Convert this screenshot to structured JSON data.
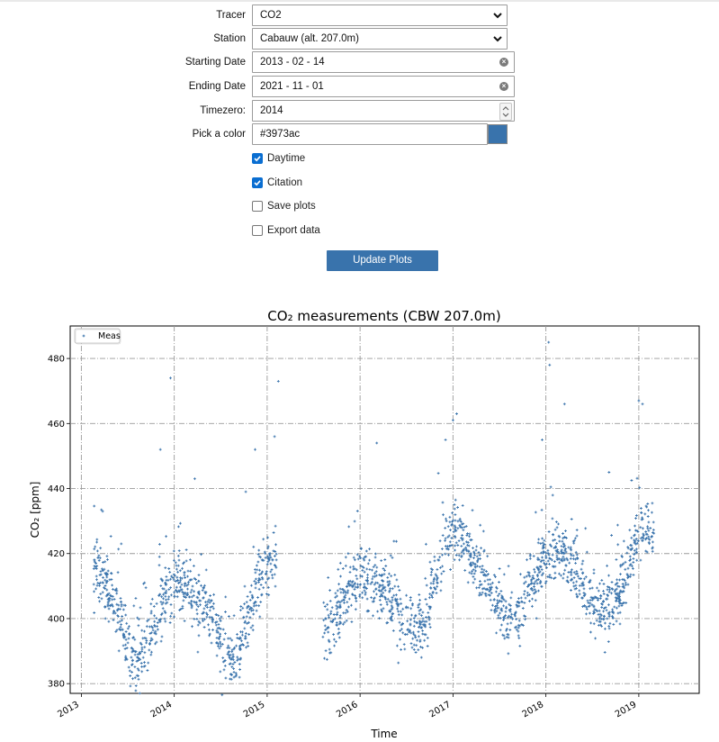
{
  "form": {
    "tracer": {
      "label": "Tracer",
      "value": "CO2"
    },
    "station": {
      "label": "Station",
      "value": "Cabauw (alt. 207.0m)"
    },
    "start_date": {
      "label": "Starting Date",
      "value": "2013 - 02 - 14"
    },
    "end_date": {
      "label": "Ending Date",
      "value": "2021 - 11 - 01"
    },
    "timezero": {
      "label": "Timezero:",
      "value": "2014"
    },
    "color": {
      "label": "Pick a color",
      "value": "#3973ac"
    },
    "checkboxes": [
      {
        "label": "Daytime",
        "checked": true
      },
      {
        "label": "Citation",
        "checked": true
      },
      {
        "label": "Save plots",
        "checked": false
      },
      {
        "label": "Export data",
        "checked": false
      }
    ],
    "update_button": "Update Plots"
  },
  "chart_data": {
    "type": "scatter",
    "title": "CO₂ measurements (CBW 207.0m)",
    "xlabel": "Time",
    "ylabel": "CO₂ [ppm]",
    "xlim": [
      2012.88,
      2019.65
    ],
    "ylim": [
      377,
      490
    ],
    "x_ticks": [
      "2013",
      "2014",
      "2015",
      "2016",
      "2017",
      "2018",
      "2019"
    ],
    "y_ticks": [
      380,
      400,
      420,
      440,
      460,
      480
    ],
    "grid": true,
    "grid_style": "dash-dot",
    "legend": {
      "entries": [
        "Meas"
      ],
      "placement": "top-left"
    },
    "marker": "+",
    "series_color": "#3973ac",
    "series": [
      {
        "name": "Meas",
        "note_segments_approx": [
          {
            "from": "2013-02-14",
            "to": "2015-03-10",
            "pattern": "seasonal cycle, winter ~405-410, summer ~390"
          },
          {
            "from": "2015-07-01",
            "to": "2019-03-01",
            "pattern": "seasonal cycle, winter ~415-425, summer ~395-400"
          }
        ],
        "points": [
          {
            "x": 2013.13,
            "y": 420
          },
          {
            "x": 2013.2,
            "y": 415
          },
          {
            "x": 2013.3,
            "y": 407
          },
          {
            "x": 2013.4,
            "y": 401
          },
          {
            "x": 2013.5,
            "y": 393
          },
          {
            "x": 2013.55,
            "y": 387
          },
          {
            "x": 2013.65,
            "y": 390
          },
          {
            "x": 2013.75,
            "y": 395
          },
          {
            "x": 2013.85,
            "y": 402
          },
          {
            "x": 2013.92,
            "y": 408
          },
          {
            "x": 2014.0,
            "y": 410
          },
          {
            "x": 2014.1,
            "y": 409
          },
          {
            "x": 2014.2,
            "y": 407
          },
          {
            "x": 2014.3,
            "y": 405
          },
          {
            "x": 2014.4,
            "y": 400
          },
          {
            "x": 2014.5,
            "y": 392
          },
          {
            "x": 2014.6,
            "y": 387
          },
          {
            "x": 2014.7,
            "y": 392
          },
          {
            "x": 2014.8,
            "y": 400
          },
          {
            "x": 2014.9,
            "y": 410
          },
          {
            "x": 2015.0,
            "y": 415
          },
          {
            "x": 2015.1,
            "y": 418
          },
          {
            "x": 2015.6,
            "y": 397
          },
          {
            "x": 2015.7,
            "y": 396
          },
          {
            "x": 2015.8,
            "y": 405
          },
          {
            "x": 2015.9,
            "y": 410
          },
          {
            "x": 2016.0,
            "y": 412
          },
          {
            "x": 2016.1,
            "y": 411
          },
          {
            "x": 2016.2,
            "y": 410
          },
          {
            "x": 2016.3,
            "y": 408
          },
          {
            "x": 2016.4,
            "y": 404
          },
          {
            "x": 2016.5,
            "y": 398
          },
          {
            "x": 2016.6,
            "y": 395
          },
          {
            "x": 2016.7,
            "y": 400
          },
          {
            "x": 2016.8,
            "y": 410
          },
          {
            "x": 2016.9,
            "y": 420
          },
          {
            "x": 2017.0,
            "y": 428
          },
          {
            "x": 2017.1,
            "y": 425
          },
          {
            "x": 2017.2,
            "y": 418
          },
          {
            "x": 2017.3,
            "y": 414
          },
          {
            "x": 2017.4,
            "y": 410
          },
          {
            "x": 2017.5,
            "y": 404
          },
          {
            "x": 2017.6,
            "y": 398
          },
          {
            "x": 2017.7,
            "y": 400
          },
          {
            "x": 2017.8,
            "y": 408
          },
          {
            "x": 2017.9,
            "y": 414
          },
          {
            "x": 2018.0,
            "y": 418
          },
          {
            "x": 2018.1,
            "y": 420
          },
          {
            "x": 2018.2,
            "y": 420
          },
          {
            "x": 2018.3,
            "y": 416
          },
          {
            "x": 2018.4,
            "y": 410
          },
          {
            "x": 2018.5,
            "y": 405
          },
          {
            "x": 2018.6,
            "y": 403
          },
          {
            "x": 2018.7,
            "y": 402
          },
          {
            "x": 2018.8,
            "y": 408
          },
          {
            "x": 2018.9,
            "y": 418
          },
          {
            "x": 2019.0,
            "y": 426
          },
          {
            "x": 2019.1,
            "y": 428
          },
          {
            "x": 2019.17,
            "y": 425
          }
        ],
        "outliers": [
          {
            "x": 2013.96,
            "y": 474
          },
          {
            "x": 2015.12,
            "y": 473
          },
          {
            "x": 2014.87,
            "y": 452
          },
          {
            "x": 2016.18,
            "y": 454
          },
          {
            "x": 2017.0,
            "y": 461
          },
          {
            "x": 2017.04,
            "y": 463
          },
          {
            "x": 2018.03,
            "y": 485
          },
          {
            "x": 2018.04,
            "y": 478
          },
          {
            "x": 2019.0,
            "y": 467
          },
          {
            "x": 2019.04,
            "y": 466
          },
          {
            "x": 2013.85,
            "y": 452
          },
          {
            "x": 2014.22,
            "y": 443
          },
          {
            "x": 2013.23,
            "y": 433
          },
          {
            "x": 2013.43,
            "y": 423
          },
          {
            "x": 2014.77,
            "y": 439
          },
          {
            "x": 2015.08,
            "y": 456
          },
          {
            "x": 2018.2,
            "y": 466
          },
          {
            "x": 2018.68,
            "y": 445
          },
          {
            "x": 2016.92,
            "y": 455
          },
          {
            "x": 2017.96,
            "y": 455
          }
        ]
      }
    ]
  }
}
